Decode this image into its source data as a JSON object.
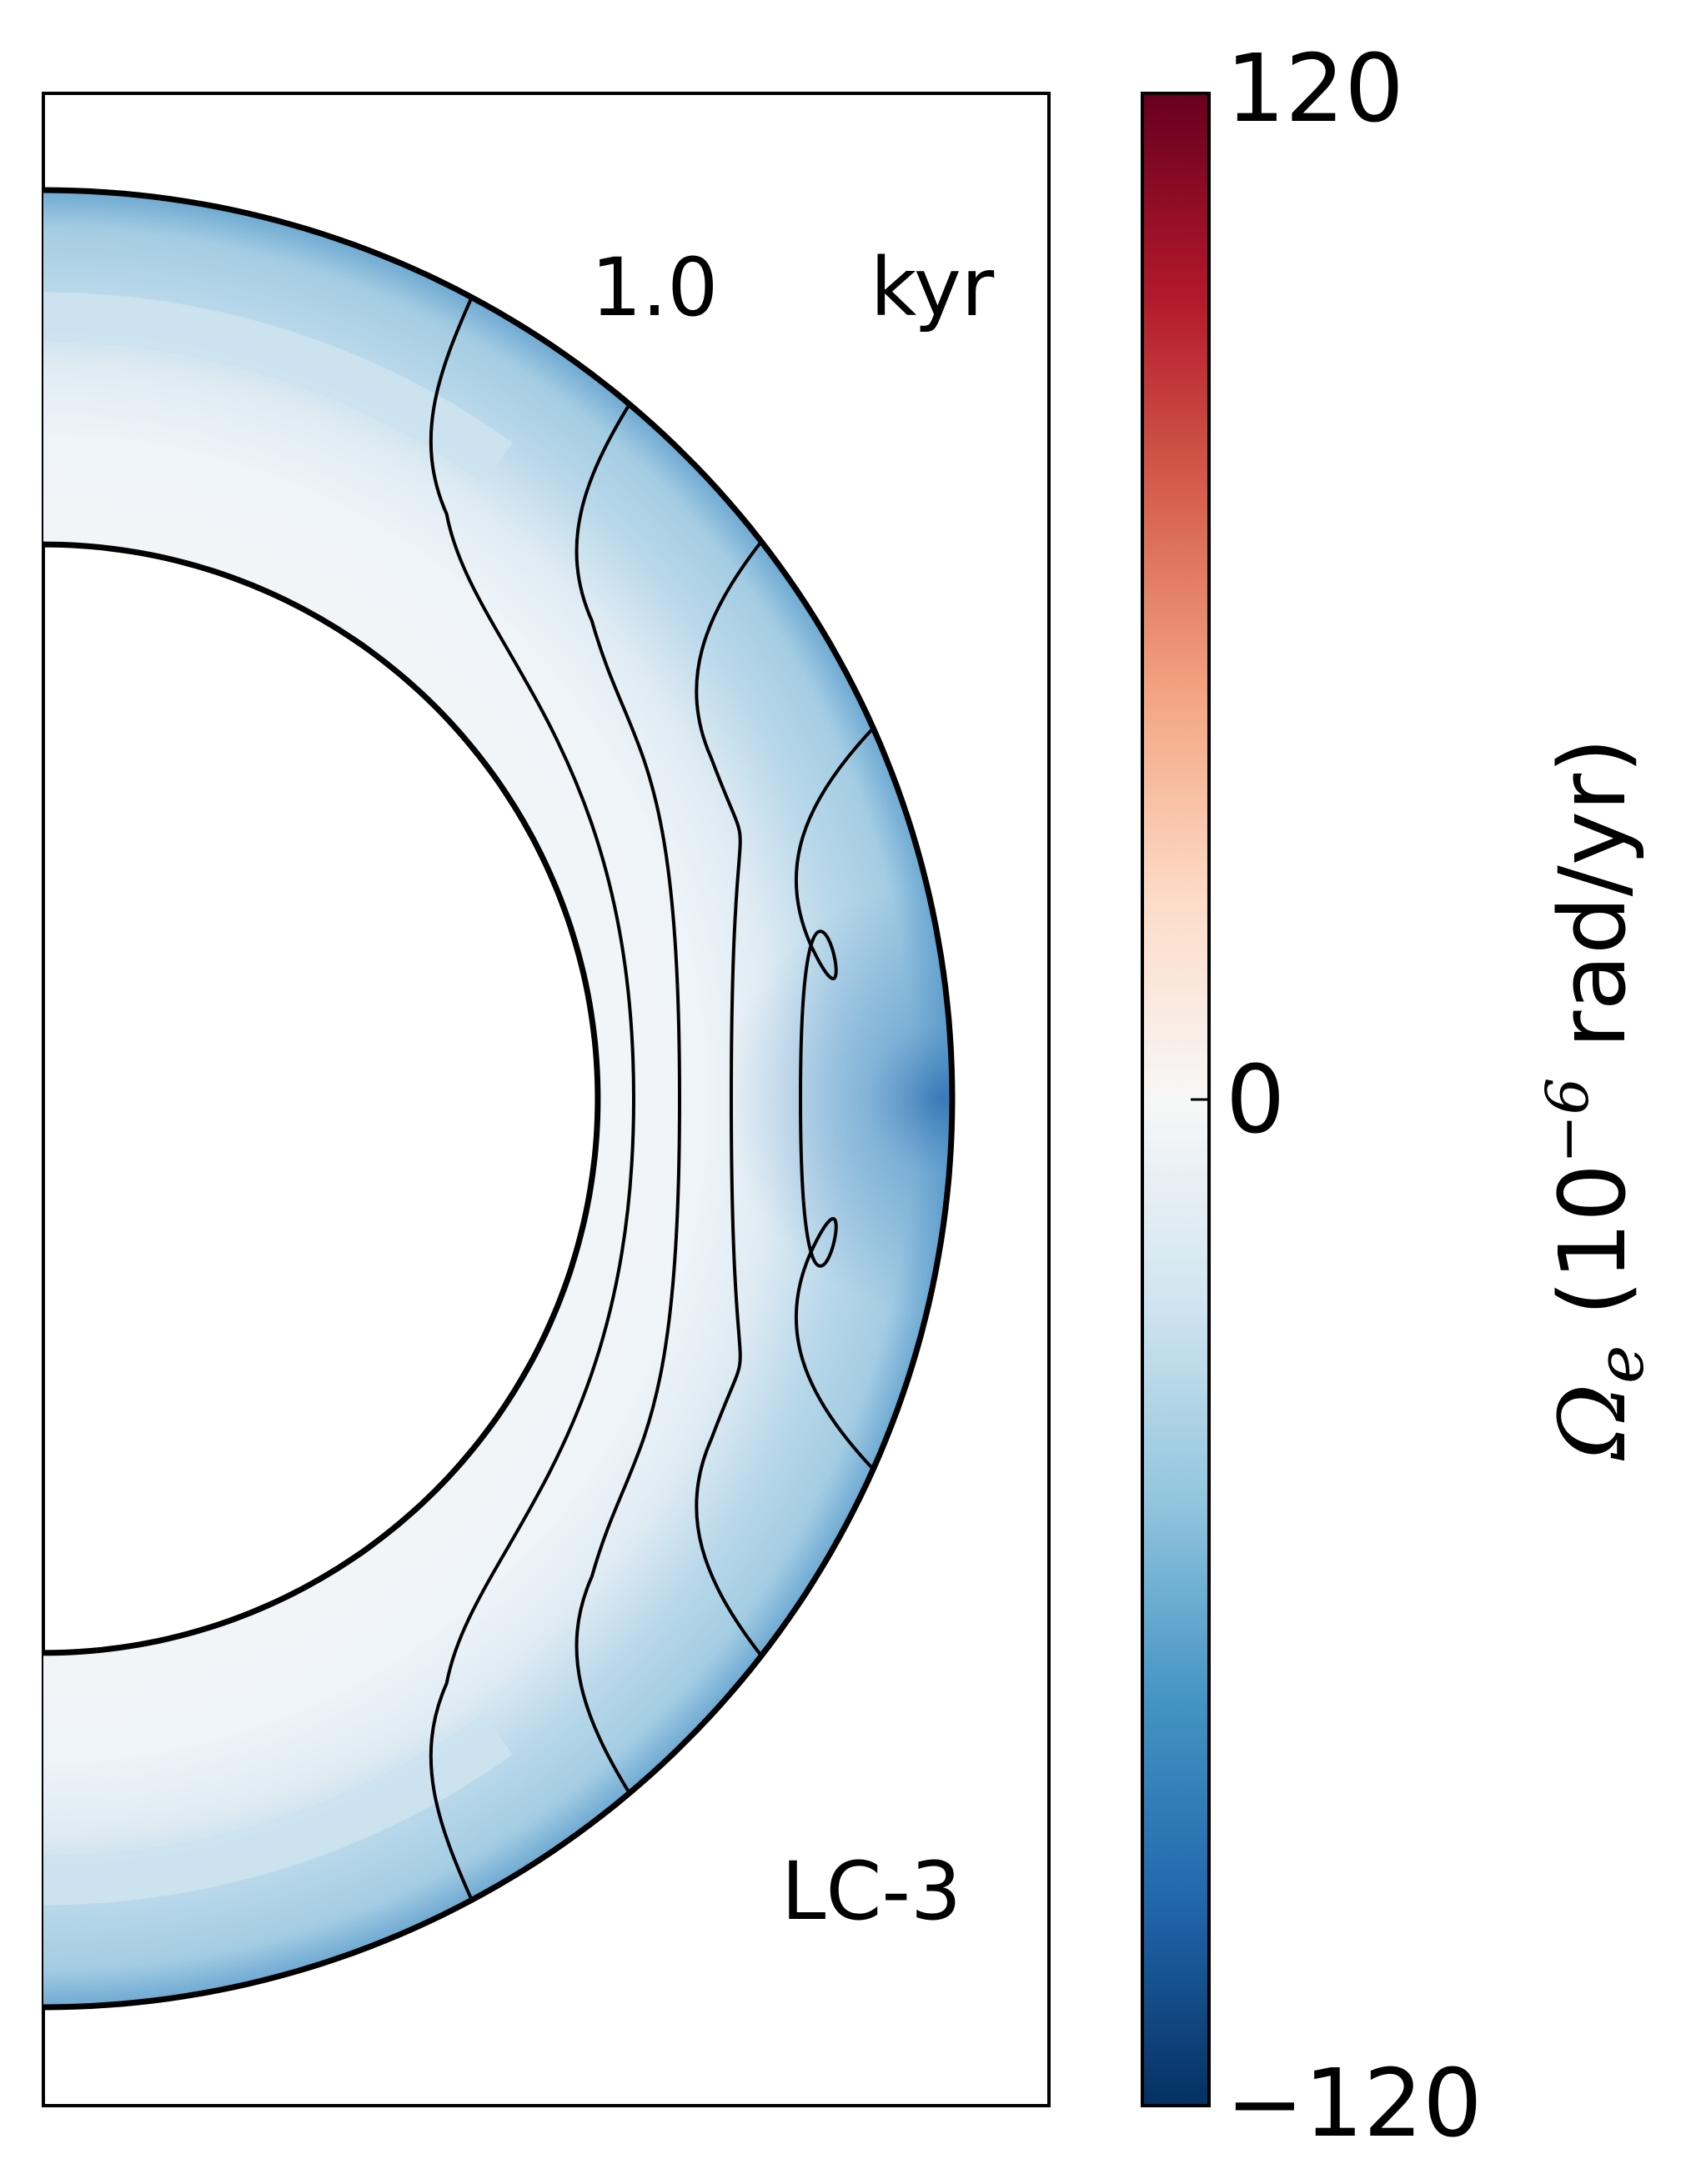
{
  "chart_data": {
    "type": "heatmap",
    "domain": "half-annulus (meridional cross-section of a shell)",
    "annotation_time": "1.0",
    "annotation_time_unit": "kyr",
    "annotation_model": "LC-3",
    "colorbar": {
      "label_symbol": "Ω",
      "label_subscript": "e",
      "label_open": " (10",
      "label_exponent": "−6",
      "label_unit": " rad/yr)",
      "range": [
        -120,
        120
      ],
      "ticks": [
        "120",
        "0",
        "−120"
      ],
      "colormap": "RdBu_r",
      "stops": [
        "#053061",
        "#2166ac",
        "#4393c3",
        "#92c5de",
        "#d1e5f0",
        "#f7f7f7",
        "#fddbc7",
        "#f4a582",
        "#d6604d",
        "#b2182b",
        "#67001f"
      ]
    },
    "inner_radius_fraction": 0.61,
    "field_colors": {
      "outer_edge": "#2166ac",
      "equator_max": "#2e73b5",
      "band": "#a8cfe4",
      "interior": "#eef3f7",
      "polar_band": "#cfe3ef"
    },
    "grid": false
  }
}
